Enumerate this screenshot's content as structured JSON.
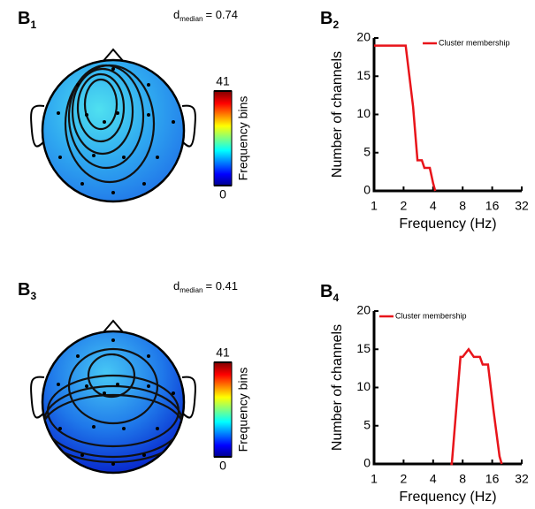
{
  "chart_data": [
    {
      "type": "topomap",
      "panel_label": "B",
      "panel_index": "1",
      "annotation": [
        "d",
        "median",
        "= 0.74"
      ],
      "colorbar_label": "Frequency bins",
      "clim": [
        0,
        41
      ],
      "cticks": [
        0,
        41
      ]
    },
    {
      "type": "line",
      "panel_label": "B",
      "panel_index": "2",
      "x_label": "Frequency (Hz)",
      "y_label": "Number of channels",
      "x": [
        1,
        2,
        2.1,
        2.5,
        2.77,
        3.07,
        3.26,
        3.7,
        4,
        4.2
      ],
      "series": [
        {
          "name": "Cluster membership",
          "color": "#e8141a",
          "values": [
            19,
            19,
            19,
            11,
            4,
            4,
            3,
            3,
            1,
            0
          ]
        }
      ],
      "xlim": [
        1,
        32
      ],
      "xticks": [
        1,
        2,
        4,
        8,
        16,
        32
      ],
      "ylim": [
        0,
        20
      ],
      "yticks": [
        0,
        5,
        10,
        15,
        20
      ],
      "log_x": true,
      "legend": "top-right"
    },
    {
      "type": "topomap",
      "panel_label": "B",
      "panel_index": "3",
      "annotation": [
        "d",
        "median",
        "= 0.41"
      ],
      "colorbar_label": "Frequency bins",
      "clim": [
        0,
        41
      ],
      "cticks": [
        0,
        41
      ]
    },
    {
      "type": "line",
      "panel_label": "B",
      "panel_index": "4",
      "x_label": "Frequency (Hz)",
      "y_label": "Number of channels",
      "x": [
        6,
        6.2,
        7.6,
        8,
        9.2,
        10.4,
        12,
        12.8,
        14.5,
        16.5,
        19,
        20
      ],
      "series": [
        {
          "name": "Cluster membership",
          "color": "#e8141a",
          "values": [
            0,
            0,
            14,
            14,
            15,
            14,
            14,
            13,
            13,
            7,
            1,
            0
          ]
        }
      ],
      "xlim": [
        1,
        32
      ],
      "xticks": [
        1,
        2,
        4,
        8,
        16,
        32
      ],
      "ylim": [
        0,
        20
      ],
      "yticks": [
        0,
        5,
        10,
        15,
        20
      ],
      "log_x": true,
      "legend": "top-left"
    }
  ]
}
